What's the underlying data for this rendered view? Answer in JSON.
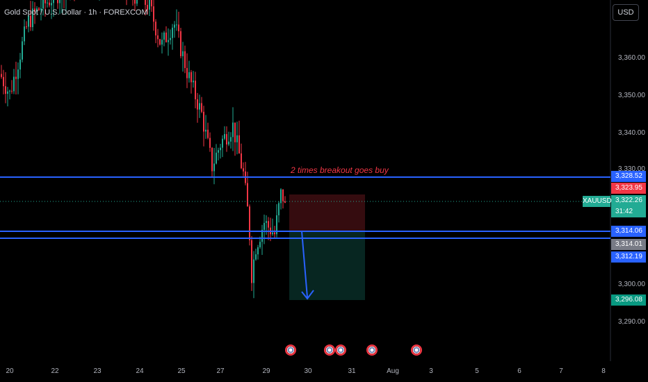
{
  "header": {
    "title": "Gold Spot / U.S. Dollar · 1h · FOREXCOM"
  },
  "currency_button": "USD",
  "symbol_label": "XAUUSD",
  "annotation": "2 times breakout goes buy",
  "y_axis": {
    "ticks": [
      "3,360.00",
      "3,350.00",
      "3,340.00",
      "3,330.00",
      "3,300.00",
      "3,290.00"
    ]
  },
  "x_axis": {
    "ticks": [
      "20",
      "22",
      "23",
      "24",
      "25",
      "27",
      "29",
      "30",
      "31",
      "Aug",
      "3",
      "5",
      "6",
      "7",
      "8"
    ]
  },
  "price_labels": {
    "resistance": "3,328.52",
    "sell": "3,323.95",
    "last": "3,322.26",
    "countdown": "31:42",
    "level_a": "3,314.06",
    "buy": "3,314.01",
    "level_b": "3,312.19",
    "target": "3,296.08"
  },
  "colors": {
    "up": "#22ab94",
    "down": "#f23645",
    "line": "#2962ff",
    "sell_label": "#f23645",
    "last_label": "#22ab94",
    "buy_label": "#787b86"
  },
  "chart_data": {
    "type": "candlestick",
    "symbol": "XAUUSD",
    "interval": "1h",
    "y_range": [
      3285,
      3370
    ],
    "horizontal_lines": [
      3328.52,
      3314.06,
      3312.19
    ],
    "position": {
      "entry": 3314.06,
      "stop": 3323.95,
      "target": 3296.08
    },
    "candles_summary": {
      "start_high": 3370,
      "late_low": 3302,
      "last": 3322.26
    }
  }
}
